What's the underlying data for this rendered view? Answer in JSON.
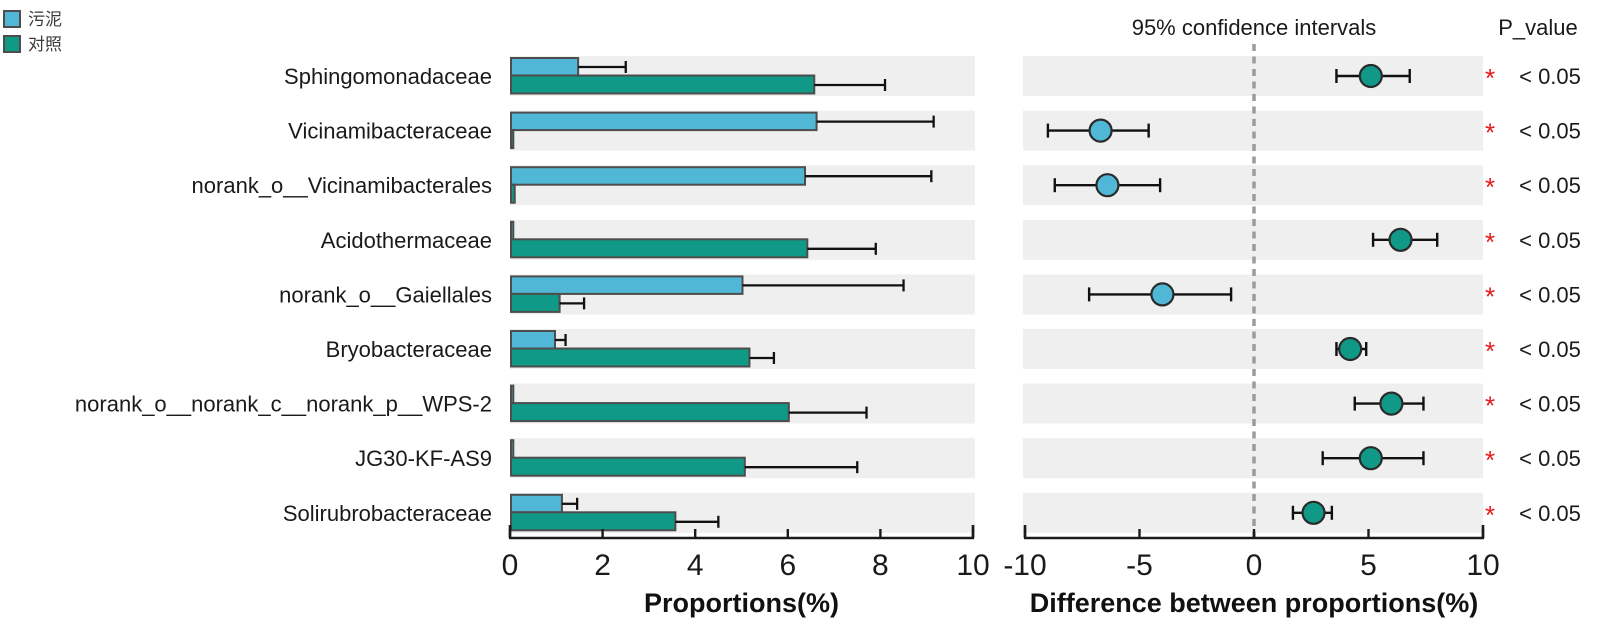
{
  "legend": {
    "items": [
      {
        "label": "污泥",
        "color_key": "sludge"
      },
      {
        "label": "对照",
        "color_key": "control"
      }
    ]
  },
  "categories": [
    "Sphingomonadaceae",
    "Vicinamibacteraceae",
    "norank_o__Vicinamibacterales",
    "Acidothermaceae",
    "norank_o__Gaiellales",
    "Bryobacteraceae",
    "norank_o__norank_c__norank_p__WPS-2",
    "JG30-KF-AS9",
    "Solirubrobacteraceae"
  ],
  "chart_data": [
    {
      "type": "bar",
      "title": "",
      "xlabel": "Proportions(%)",
      "ylabel": "",
      "xlim": [
        0,
        10
      ],
      "xticks": [
        0,
        2,
        4,
        6,
        8,
        10
      ],
      "orientation": "horizontal",
      "grid": false,
      "series": [
        {
          "name": "污泥",
          "color_key": "sludge",
          "values": [
            1.45,
            6.6,
            6.35,
            0.05,
            5.0,
            0.95,
            0.05,
            0.05,
            1.1
          ],
          "ci_upper": [
            2.5,
            9.15,
            9.1,
            0.1,
            8.5,
            1.2,
            0.1,
            0.1,
            1.45
          ]
        },
        {
          "name": "对照",
          "color_key": "control",
          "values": [
            6.55,
            0.05,
            0.08,
            6.4,
            1.05,
            5.15,
            6.0,
            5.05,
            3.55
          ],
          "ci_upper": [
            8.1,
            0.1,
            0.15,
            7.9,
            1.6,
            5.7,
            7.7,
            7.5,
            4.5
          ]
        }
      ]
    },
    {
      "type": "scatter",
      "title": "95% confidence intervals",
      "xlabel": "Difference between proportions(%)",
      "xlim": [
        -10,
        10
      ],
      "xticks": [
        -10,
        -5,
        0,
        5,
        10
      ],
      "zero_line_dashed": true,
      "points": {
        "diff": [
          5.1,
          -6.7,
          -6.4,
          6.4,
          -4.0,
          4.2,
          6.0,
          5.1,
          2.6
        ],
        "ci_low": [
          3.6,
          -9.0,
          -8.7,
          5.2,
          -7.2,
          3.6,
          4.4,
          3.0,
          1.7
        ],
        "ci_high": [
          6.8,
          -4.6,
          -4.1,
          8.0,
          -1.0,
          4.9,
          7.4,
          7.4,
          3.4
        ],
        "dot_color_key": [
          "control",
          "sludge",
          "sludge",
          "control",
          "sludge",
          "control",
          "control",
          "control",
          "control"
        ]
      }
    }
  ],
  "p_value_column": {
    "title": "P_value",
    "marker": "*",
    "values": [
      "< 0.05",
      "< 0.05",
      "< 0.05",
      "< 0.05",
      "< 0.05",
      "< 0.05",
      "< 0.05",
      "< 0.05",
      "< 0.05"
    ]
  },
  "colors": {
    "sludge": "#50B8D6",
    "control": "#0F9986",
    "bar_border": "#4d4d4d",
    "band": "#efefef",
    "error_bar": "#111111",
    "axis": "#1a1a1a",
    "dashed_line": "#9b9b9b",
    "significance": "#e51a1a",
    "text": "#1a1a1a"
  }
}
